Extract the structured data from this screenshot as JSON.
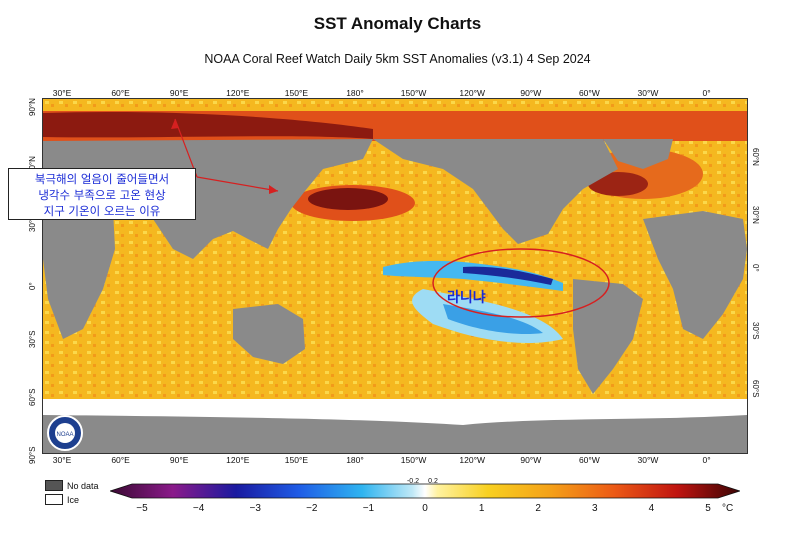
{
  "header": {
    "title": "SST Anomaly Charts",
    "subtitle": "NOAA Coral Reef Watch Daily 5km SST Anomalies  (v3.1)   4 Sep 2024"
  },
  "map": {
    "lon_labels": [
      "30°E",
      "60°E",
      "90°E",
      "120°E",
      "150°E",
      "180°",
      "150°W",
      "120°W",
      "90°W",
      "60°W",
      "30°W",
      "0°"
    ],
    "lat_labels_left": [
      "90°N",
      "60°N",
      "30°N",
      "0°",
      "30°S",
      "60°S",
      "90°S"
    ],
    "lat_labels_right": [
      "60°N",
      "30°N",
      "0°",
      "30°S",
      "60°S"
    ],
    "land_color": "#8a8a8a",
    "ice_color": "#ffffff",
    "logo_text": "NOAA"
  },
  "annotations": {
    "callout_lines": [
      "북극해의 얼음이 줄어들면서",
      "냉각수 부족으로 고온 현상",
      "지구 기온이 오르는 이유"
    ],
    "lanina_label": "라니냐",
    "highlight_color": "#d62020"
  },
  "legend": {
    "no_data_label": "No data",
    "ice_label": "Ice",
    "colorbar_ticks": [
      "−5",
      "−4",
      "−3",
      "−2",
      "−1",
      "0",
      "1",
      "2",
      "3",
      "4",
      "5"
    ],
    "colorbar_minor_ticks": [
      "-0.2",
      "0.2"
    ],
    "unit": "°C",
    "range": [
      -5,
      5
    ]
  }
}
